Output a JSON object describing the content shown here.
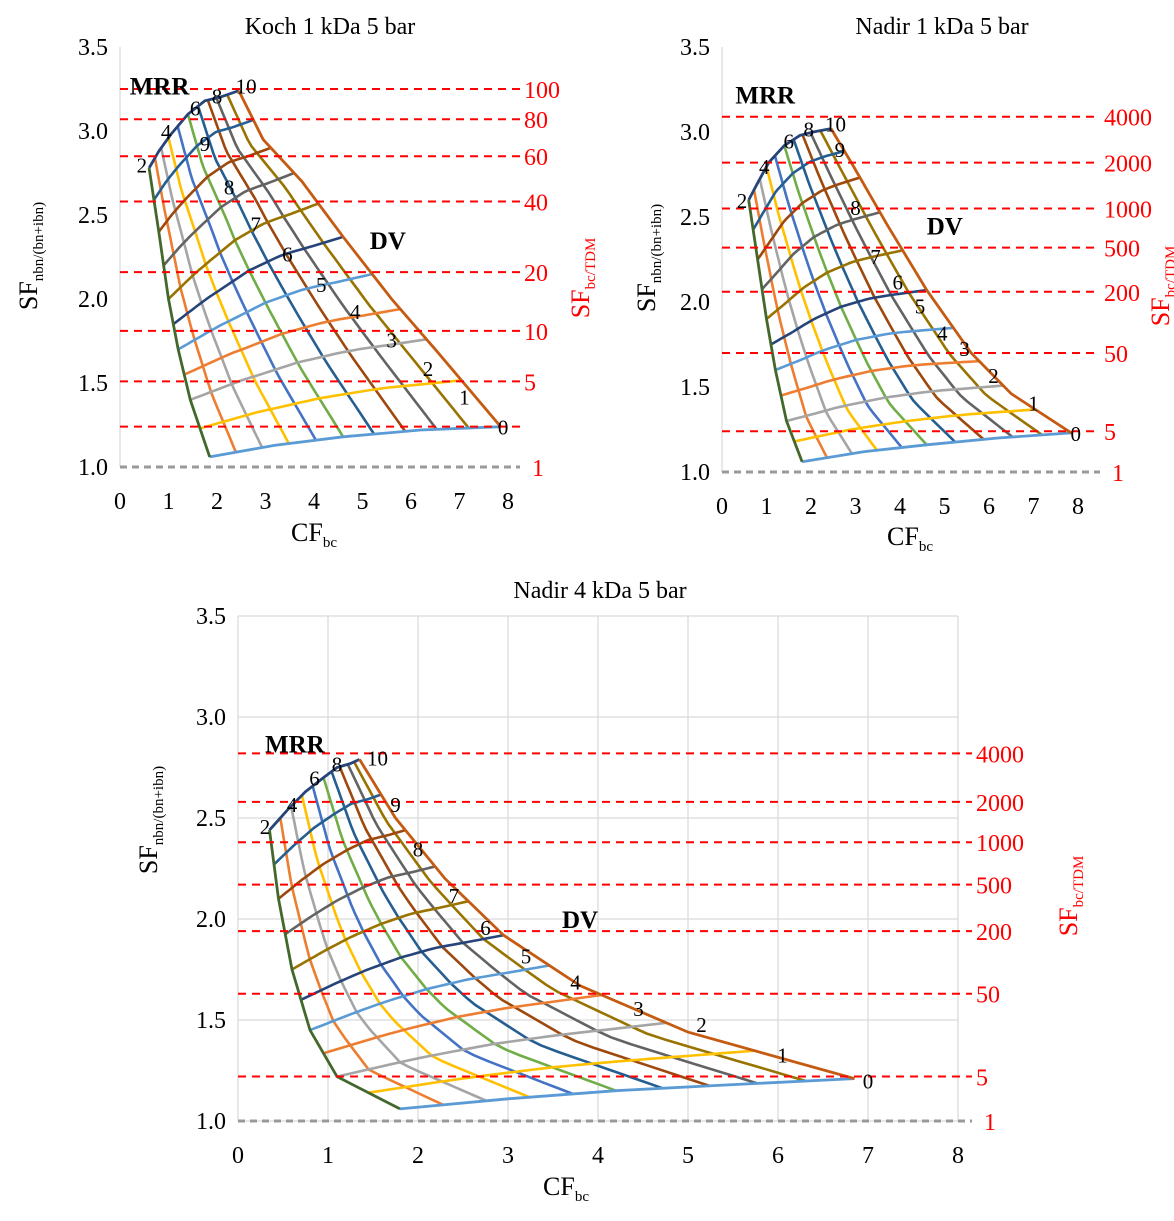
{
  "colors": {
    "curves": [
      "#5b9bd5",
      "#ed7d31",
      "#a5a5a5",
      "#ffc000",
      "#4472c4",
      "#70ad47",
      "#255e91",
      "#9e480e",
      "#636363",
      "#997300",
      "#264478"
    ],
    "envelope_left": "#43682b",
    "envelope_right": "#c55a11",
    "ref_line": "#ff0000",
    "baseline": "#999999",
    "grid": "#d9d9d9"
  },
  "chart_data": [
    {
      "type": "line",
      "title": "Koch 1 kDa  5 bar",
      "xlabel_main": "CF",
      "xlabel_sub": "bc",
      "ylabel_main": "SF",
      "ylabel_sub": "nbn/(bn+ibn)",
      "y2label_main": "SF",
      "y2label_sub": "bc/TDM",
      "xlim": [
        0,
        8
      ],
      "ylim": [
        1.0,
        3.5
      ],
      "xticks": [
        "0",
        "1",
        "2",
        "3",
        "4",
        "5",
        "6",
        "7",
        "8"
      ],
      "yticks": [
        "1.0",
        "1.5",
        "2.0",
        "2.5",
        "3.0",
        "3.5"
      ],
      "grid": false,
      "top": [
        [
          0.6,
          2.78
        ],
        [
          0.8,
          2.88
        ],
        [
          1.05,
          2.98
        ],
        [
          1.4,
          3.1
        ],
        [
          1.75,
          3.18
        ],
        [
          2.05,
          3.2
        ],
        [
          2.45,
          3.24
        ]
      ],
      "right": [
        [
          2.45,
          3.24
        ],
        [
          2.95,
          2.95
        ],
        [
          3.75,
          2.7
        ],
        [
          4.6,
          2.37
        ],
        [
          5.6,
          2.0
        ],
        [
          6.5,
          1.7
        ],
        [
          7.85,
          1.24
        ]
      ],
      "left": [
        [
          0.6,
          2.78
        ],
        [
          0.8,
          2.4
        ],
        [
          1.0,
          2.0
        ],
        [
          1.2,
          1.7
        ],
        [
          1.45,
          1.4
        ],
        [
          1.85,
          1.06
        ]
      ],
      "bottom": [
        [
          1.85,
          1.06
        ],
        [
          3.2,
          1.13
        ],
        [
          4.6,
          1.18
        ],
        [
          6.2,
          1.22
        ],
        [
          7.85,
          1.24
        ]
      ],
      "ref_lines": [
        {
          "y": 1.24,
          "label": ""
        },
        {
          "y": 1.51,
          "label": "5"
        },
        {
          "y": 1.81,
          "label": "10"
        },
        {
          "y": 2.16,
          "label": "20"
        },
        {
          "y": 2.58,
          "label": "40"
        },
        {
          "y": 2.85,
          "label": "60"
        },
        {
          "y": 3.07,
          "label": "80"
        },
        {
          "y": 3.25,
          "label": "100"
        }
      ],
      "ref_bottom_label": "1",
      "curve_labels": [
        {
          "text": "0",
          "x": 7.9,
          "y": 1.24
        },
        {
          "text": "1",
          "x": 7.1,
          "y": 1.42
        },
        {
          "text": "2",
          "x": 6.35,
          "y": 1.59
        },
        {
          "text": "3",
          "x": 5.6,
          "y": 1.76
        },
        {
          "text": "4",
          "x": 4.85,
          "y": 1.93
        },
        {
          "text": "5",
          "x": 4.15,
          "y": 2.09
        },
        {
          "text": "6",
          "x": 3.45,
          "y": 2.27
        },
        {
          "text": "7",
          "x": 2.8,
          "y": 2.45
        },
        {
          "text": "8",
          "x": 2.25,
          "y": 2.67
        },
        {
          "text": "9",
          "x": 1.75,
          "y": 2.93
        },
        {
          "text": "10",
          "x": 2.6,
          "y": 3.27
        },
        {
          "text": "8",
          "x": 2.0,
          "y": 3.21
        },
        {
          "text": "6",
          "x": 1.55,
          "y": 3.14
        },
        {
          "text": "4",
          "x": 0.95,
          "y": 3.0
        },
        {
          "text": "2",
          "x": 0.45,
          "y": 2.8
        }
      ],
      "zones": [
        {
          "text": "MRR",
          "x": 0.2,
          "y": 3.27
        },
        {
          "text": "DV",
          "x": 5.15,
          "y": 2.35
        }
      ]
    },
    {
      "type": "line",
      "title": "Nadir 1 kDa  5 bar",
      "xlabel_main": "CF",
      "xlabel_sub": "bc",
      "ylabel_main": "SF",
      "ylabel_sub": "nbn/(bn+ibn)",
      "y2label_main": "SF",
      "y2label_sub": "bc/TDM",
      "xlim": [
        0,
        8
      ],
      "ylim": [
        1.0,
        3.5
      ],
      "xticks": [
        "0",
        "1",
        "2",
        "3",
        "4",
        "5",
        "6",
        "7",
        "8"
      ],
      "yticks": [
        "1.0",
        "1.5",
        "2.0",
        "2.5",
        "3.0",
        "3.5"
      ],
      "grid": false,
      "top": [
        [
          0.6,
          2.6
        ],
        [
          0.8,
          2.7
        ],
        [
          1.05,
          2.82
        ],
        [
          1.4,
          2.92
        ],
        [
          1.75,
          2.98
        ],
        [
          2.05,
          3.0
        ],
        [
          2.45,
          3.02
        ]
      ],
      "right": [
        [
          2.45,
          3.02
        ],
        [
          2.95,
          2.8
        ],
        [
          3.7,
          2.46
        ],
        [
          4.6,
          2.07
        ],
        [
          5.6,
          1.7
        ],
        [
          6.5,
          1.46
        ],
        [
          7.85,
          1.23
        ]
      ],
      "left": [
        [
          0.6,
          2.6
        ],
        [
          0.8,
          2.25
        ],
        [
          1.0,
          1.9
        ],
        [
          1.2,
          1.6
        ],
        [
          1.45,
          1.3
        ],
        [
          1.8,
          1.06
        ]
      ],
      "bottom": [
        [
          1.8,
          1.06
        ],
        [
          3.2,
          1.12
        ],
        [
          4.6,
          1.16
        ],
        [
          6.2,
          1.2
        ],
        [
          7.85,
          1.23
        ]
      ],
      "ref_lines": [
        {
          "y": 1.24,
          "label": "5"
        },
        {
          "y": 1.7,
          "label": "50"
        },
        {
          "y": 2.06,
          "label": "200"
        },
        {
          "y": 2.32,
          "label": "500"
        },
        {
          "y": 2.55,
          "label": "1000"
        },
        {
          "y": 2.82,
          "label": "2000"
        },
        {
          "y": 3.09,
          "label": "4000"
        }
      ],
      "ref_bottom_label": "1",
      "curve_labels": [
        {
          "text": "0",
          "x": 7.95,
          "y": 1.23
        },
        {
          "text": "1",
          "x": 7.0,
          "y": 1.41
        },
        {
          "text": "2",
          "x": 6.1,
          "y": 1.57
        },
        {
          "text": "3",
          "x": 5.45,
          "y": 1.73
        },
        {
          "text": "4",
          "x": 4.95,
          "y": 1.82
        },
        {
          "text": "5",
          "x": 4.45,
          "y": 1.98
        },
        {
          "text": "6",
          "x": 3.95,
          "y": 2.12
        },
        {
          "text": "7",
          "x": 3.45,
          "y": 2.27
        },
        {
          "text": "8",
          "x": 3.0,
          "y": 2.56
        },
        {
          "text": "9",
          "x": 2.65,
          "y": 2.9
        },
        {
          "text": "10",
          "x": 2.55,
          "y": 3.05
        },
        {
          "text": "8",
          "x": 1.95,
          "y": 3.02
        },
        {
          "text": "6",
          "x": 1.5,
          "y": 2.95
        },
        {
          "text": "4",
          "x": 0.95,
          "y": 2.8
        },
        {
          "text": "2",
          "x": 0.45,
          "y": 2.6
        }
      ],
      "zones": [
        {
          "text": "MRR",
          "x": 0.3,
          "y": 3.22
        },
        {
          "text": "DV",
          "x": 4.6,
          "y": 2.45
        }
      ]
    },
    {
      "type": "line",
      "title": "Nadir 4 kDa  5 bar",
      "xlabel_main": "CF",
      "xlabel_sub": "bc",
      "ylabel_main": "SF",
      "ylabel_sub": "nbn/(bn+ibn)",
      "y2label_main": "SF",
      "y2label_sub": "bc/TDM",
      "xlim": [
        0,
        8
      ],
      "ylim": [
        1.0,
        3.5
      ],
      "xticks": [
        "0",
        "1",
        "2",
        "3",
        "4",
        "5",
        "6",
        "7",
        "8"
      ],
      "yticks": [
        "1.0",
        "1.5",
        "2.0",
        "2.5",
        "3.0",
        "3.5"
      ],
      "grid": true,
      "top": [
        [
          0.35,
          2.44
        ],
        [
          0.55,
          2.54
        ],
        [
          0.75,
          2.63
        ],
        [
          0.95,
          2.7
        ],
        [
          1.1,
          2.75
        ],
        [
          1.25,
          2.77
        ],
        [
          1.35,
          2.79
        ]
      ],
      "right": [
        [
          1.35,
          2.79
        ],
        [
          1.75,
          2.5
        ],
        [
          2.3,
          2.2
        ],
        [
          2.95,
          1.92
        ],
        [
          3.8,
          1.67
        ],
        [
          5.0,
          1.44
        ],
        [
          6.85,
          1.21
        ]
      ],
      "left": [
        [
          0.35,
          2.44
        ],
        [
          0.45,
          2.1
        ],
        [
          0.6,
          1.75
        ],
        [
          0.8,
          1.45
        ],
        [
          1.1,
          1.22
        ],
        [
          1.8,
          1.06
        ]
      ],
      "bottom": [
        [
          1.8,
          1.06
        ],
        [
          3.0,
          1.11
        ],
        [
          4.2,
          1.15
        ],
        [
          5.5,
          1.18
        ],
        [
          6.85,
          1.21
        ]
      ],
      "ref_lines": [
        {
          "y": 1.22,
          "label": "5"
        },
        {
          "y": 1.63,
          "label": "50"
        },
        {
          "y": 1.94,
          "label": "200"
        },
        {
          "y": 2.17,
          "label": "500"
        },
        {
          "y": 2.38,
          "label": "1000"
        },
        {
          "y": 2.58,
          "label": "2000"
        },
        {
          "y": 2.82,
          "label": "4000"
        }
      ],
      "ref_bottom_label": "1",
      "curve_labels": [
        {
          "text": "0",
          "x": 7.0,
          "y": 1.2
        },
        {
          "text": "1",
          "x": 6.05,
          "y": 1.33
        },
        {
          "text": "2",
          "x": 5.15,
          "y": 1.48
        },
        {
          "text": "3",
          "x": 4.45,
          "y": 1.56
        },
        {
          "text": "4",
          "x": 3.75,
          "y": 1.69
        },
        {
          "text": "5",
          "x": 3.2,
          "y": 1.82
        },
        {
          "text": "6",
          "x": 2.75,
          "y": 1.96
        },
        {
          "text": "7",
          "x": 2.4,
          "y": 2.12
        },
        {
          "text": "8",
          "x": 2.0,
          "y": 2.35
        },
        {
          "text": "9",
          "x": 1.75,
          "y": 2.57
        },
        {
          "text": "10",
          "x": 1.55,
          "y": 2.8
        },
        {
          "text": "8",
          "x": 1.1,
          "y": 2.77
        },
        {
          "text": "6",
          "x": 0.85,
          "y": 2.7
        },
        {
          "text": "4",
          "x": 0.6,
          "y": 2.57
        },
        {
          "text": "2",
          "x": 0.3,
          "y": 2.46
        }
      ],
      "zones": [
        {
          "text": "MRR",
          "x": 0.3,
          "y": 2.87
        },
        {
          "text": "DV",
          "x": 3.6,
          "y": 2.0
        }
      ]
    }
  ]
}
